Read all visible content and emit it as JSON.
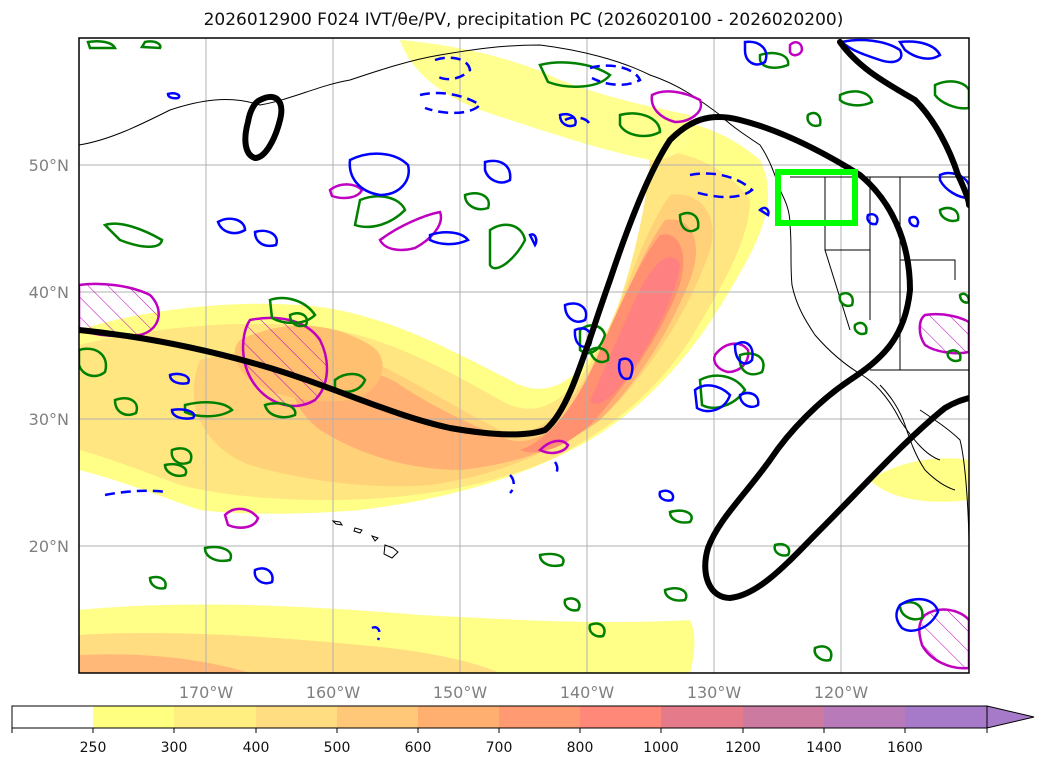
{
  "title": "2026012900 F024 IVT/θe/PV, precipitation PC (2026020100 - 2026020200)",
  "map": {
    "lon_range": [
      -180,
      -110
    ],
    "lat_range": [
      10,
      60
    ],
    "lat_ticks": [
      {
        "value": 50,
        "label": "50°N"
      },
      {
        "value": 40,
        "label": "40°N"
      },
      {
        "value": 30,
        "label": "30°N"
      },
      {
        "value": 20,
        "label": "20°N"
      }
    ],
    "lon_ticks": [
      {
        "value": -170,
        "label": "170°W"
      },
      {
        "value": -160,
        "label": "160°W"
      },
      {
        "value": -150,
        "label": "150°W"
      },
      {
        "value": -140,
        "label": "140°W"
      },
      {
        "value": -130,
        "label": "130°W"
      },
      {
        "value": -120,
        "label": "120°W"
      }
    ],
    "grid_color": "#b0b0b0",
    "highlight_box": {
      "lon": [
        -125,
        -118.8
      ],
      "lat": [
        44.3,
        48.5
      ],
      "color": "#00ff00"
    }
  },
  "colorbar": {
    "levels": [
      "250",
      "300",
      "400",
      "500",
      "600",
      "700",
      "800",
      "1000",
      "1200",
      "1400",
      "1600"
    ],
    "colors": [
      "#ffffff",
      "#ffff80",
      "#ffee80",
      "#ffdd80",
      "#ffc878",
      "#ffb070",
      "#ff9a72",
      "#ff8878",
      "#e57a8a",
      "#cc7aa0",
      "#b87ab8",
      "#a67ac8"
    ],
    "extend": "max"
  },
  "legend_colors": {
    "ivt_fill": "#ffd070",
    "theta_e_contour": "#008000",
    "pv_contour": "#0000ff",
    "precip_contour": "#c000c0",
    "jet_contour": "#000000"
  }
}
